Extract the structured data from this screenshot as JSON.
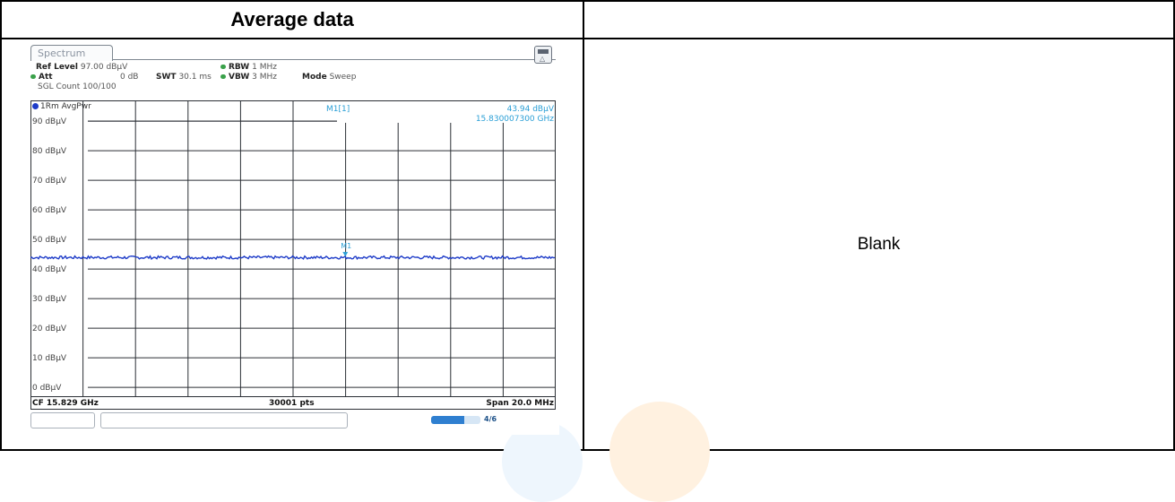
{
  "table": {
    "header_left": "Average data",
    "header_right": "",
    "right_cell_text": "Blank"
  },
  "analyzer": {
    "tab_label": "Spectrum",
    "ref_level_label": "Ref Level",
    "ref_level_value": "97.00 dBµV",
    "att_label": "Att",
    "att_value": "0 dB",
    "swt_label": "SWT",
    "swt_value": "30.1 ms",
    "rbw_label": "RBW",
    "rbw_value": "1 MHz",
    "vbw_label": "VBW",
    "vbw_value": "3 MHz",
    "mode_label": "Mode",
    "mode_value": "Sweep",
    "sgl_count": "SGL Count 100/100",
    "trace_label": "1Rm AvgPwr",
    "marker_readout": {
      "name": "M1[1]",
      "level": "43.94 dBµV",
      "frequency": "15.830007300 GHz"
    },
    "marker_label": "M1",
    "footer": {
      "center_freq": "CF 15.829 GHz",
      "points": "30001 pts",
      "span": "Span 20.0 MHz"
    },
    "progress_label": "4/6",
    "progress_fraction": 0.67,
    "colors": {
      "trace": "#1e3cc8",
      "marker": "#2a9fd6",
      "grid": "#2b2f35",
      "status_dot": "#3aa14a"
    }
  },
  "chart_data": {
    "type": "line",
    "title": "",
    "xlabel": "",
    "ylabel": "",
    "y_unit": "dBµV",
    "ylim": [
      -3,
      97
    ],
    "y_ticks": [
      {
        "value": 90,
        "label": "90 dBµV"
      },
      {
        "value": 80,
        "label": "80 dBµV"
      },
      {
        "value": 70,
        "label": "70 dBµV"
      },
      {
        "value": 60,
        "label": "60 dBµV"
      },
      {
        "value": 50,
        "label": "50 dBµV"
      },
      {
        "value": 40,
        "label": "40 dBµV"
      },
      {
        "value": 30,
        "label": "30 dBµV"
      },
      {
        "value": 20,
        "label": "20 dBµV"
      },
      {
        "value": 10,
        "label": "10 dBµV"
      },
      {
        "value": 0,
        "label": "0 dBµV"
      }
    ],
    "x_range_ghz": [
      15.819,
      15.839
    ],
    "x_divisions": 10,
    "grid": true,
    "series": [
      {
        "name": "1Rm AvgPwr",
        "level_dbuv": 43.9,
        "ripple_db": 0.5
      }
    ],
    "markers": [
      {
        "name": "M1",
        "x_ghz": 15.8300073,
        "y_dbuv": 43.94
      }
    ]
  }
}
